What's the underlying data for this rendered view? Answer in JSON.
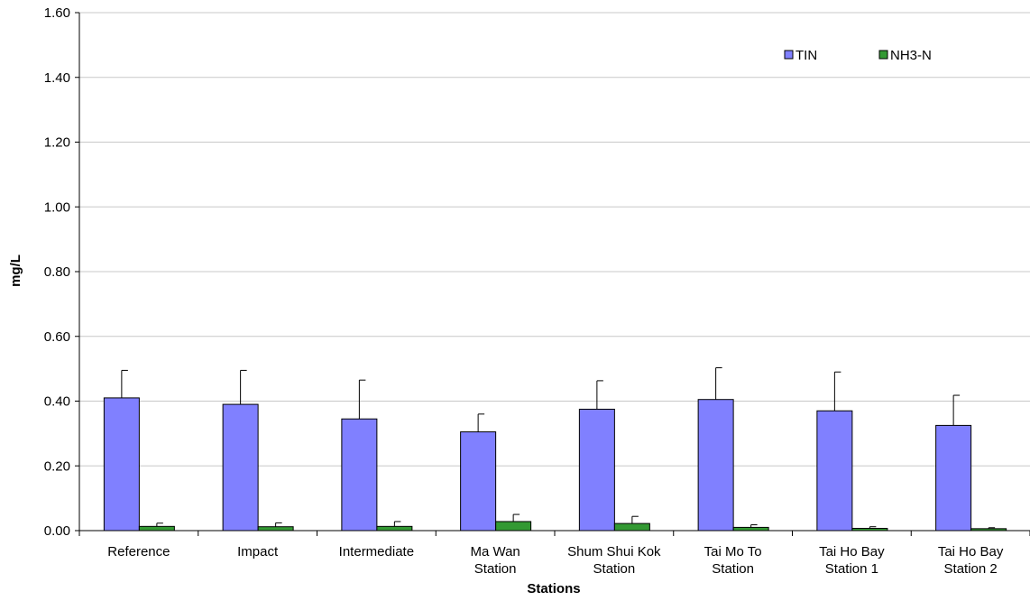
{
  "chart_data": {
    "type": "bar",
    "title": "",
    "xlabel": "Stations",
    "ylabel": "mg/L",
    "ylim": [
      0,
      1.6
    ],
    "yticks": [
      "0.00",
      "0.20",
      "0.40",
      "0.60",
      "0.80",
      "1.00",
      "1.20",
      "1.40",
      "1.60"
    ],
    "grid": true,
    "legend_position": "top-right",
    "categories": [
      [
        "Reference"
      ],
      [
        "Impact"
      ],
      [
        "Intermediate"
      ],
      [
        "Ma Wan",
        "Station"
      ],
      [
        "Shum Shui Kok",
        "Station"
      ],
      [
        "Tai Mo To",
        "Station"
      ],
      [
        "Tai Ho Bay",
        "Station 1"
      ],
      [
        "Tai Ho Bay",
        "Station 2"
      ]
    ],
    "series": [
      {
        "name": "TIN",
        "color": "#8080ff",
        "values": [
          0.41,
          0.39,
          0.345,
          0.305,
          0.375,
          0.405,
          0.37,
          0.325
        ],
        "error_plus": [
          0.085,
          0.105,
          0.12,
          0.055,
          0.088,
          0.098,
          0.12,
          0.093
        ]
      },
      {
        "name": "NH3-N",
        "color": "#339933",
        "values": [
          0.013,
          0.012,
          0.013,
          0.028,
          0.022,
          0.01,
          0.007,
          0.006
        ],
        "error_plus": [
          0.01,
          0.012,
          0.015,
          0.022,
          0.022,
          0.008,
          0.005,
          0.003
        ]
      }
    ]
  }
}
